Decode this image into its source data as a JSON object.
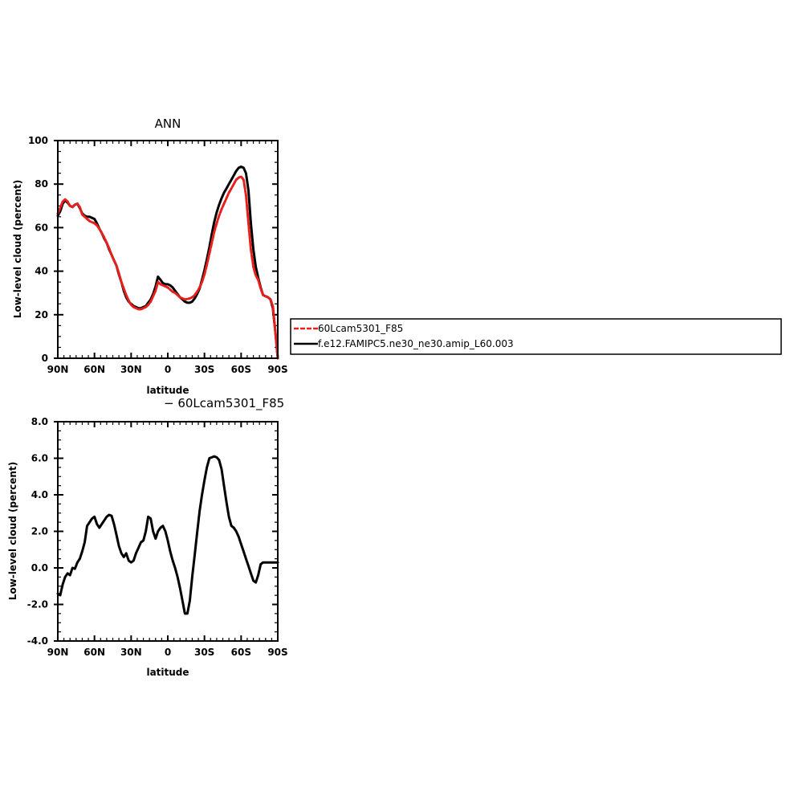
{
  "chart_data": [
    {
      "type": "line",
      "title": "ANN",
      "xlabel": "latitude",
      "ylabel": "Low-level cloud (percent)",
      "xticks": [
        "90N",
        "60N",
        "30N",
        "0",
        "30S",
        "60S",
        "90S"
      ],
      "yticks": [
        "0",
        "20",
        "40",
        "60",
        "80",
        "100"
      ],
      "xlim": [
        90,
        -90
      ],
      "ylim": [
        0,
        100
      ],
      "series": [
        {
          "name": "60Lcam5301_F85",
          "color": "#e8201c",
          "style": "dashed",
          "x": [
            90,
            88,
            86,
            84,
            82,
            80,
            78,
            76,
            74,
            72,
            70,
            68,
            66,
            64,
            62,
            60,
            58,
            56,
            54,
            52,
            50,
            48,
            46,
            44,
            42,
            40,
            38,
            36,
            34,
            32,
            30,
            28,
            26,
            24,
            22,
            20,
            18,
            16,
            14,
            12,
            10,
            8,
            6,
            4,
            2,
            0,
            -2,
            -4,
            -6,
            -8,
            -10,
            -12,
            -14,
            -16,
            -18,
            -20,
            -22,
            -24,
            -26,
            -28,
            -30,
            -32,
            -34,
            -36,
            -38,
            -40,
            -42,
            -44,
            -46,
            -48,
            -50,
            -52,
            -54,
            -56,
            -58,
            -60,
            -62,
            -64,
            -66,
            -68,
            -70,
            -72,
            -74,
            -76,
            -78,
            -80,
            -82,
            -84,
            -86,
            -88,
            -90
          ],
          "y": [
            66.5,
            69,
            72,
            73,
            72,
            70,
            69.5,
            70.5,
            71,
            69.5,
            66,
            65,
            64,
            63,
            62.5,
            62,
            61,
            59.5,
            57.5,
            55.5,
            53,
            50.5,
            47.5,
            45,
            42.5,
            39,
            35,
            32,
            29,
            26.5,
            24.5,
            23.5,
            23,
            22.5,
            22.5,
            23,
            23.5,
            24.5,
            26,
            28.5,
            31,
            35,
            34,
            33.5,
            33,
            32.5,
            31.5,
            30.5,
            30,
            29,
            28,
            27.5,
            27,
            27.2,
            27.5,
            28,
            29,
            30.5,
            32.5,
            35,
            38.5,
            43,
            48,
            53,
            58,
            62,
            65.5,
            68.5,
            71,
            73.5,
            76,
            78,
            80,
            82,
            83,
            83.5,
            82,
            75,
            62,
            50,
            42,
            38,
            36,
            32,
            29,
            28.5,
            28,
            27,
            24,
            12,
            0
          ]
        },
        {
          "name": "f.e12.FAMIPC5.ne30_ne30.amip_L60.003",
          "color": "#000000",
          "style": "solid",
          "x": [
            90,
            88,
            86,
            84,
            82,
            80,
            78,
            76,
            74,
            72,
            70,
            68,
            66,
            64,
            62,
            60,
            58,
            56,
            54,
            52,
            50,
            48,
            46,
            44,
            42,
            40,
            38,
            36,
            34,
            32,
            30,
            28,
            26,
            24,
            22,
            20,
            18,
            16,
            14,
            12,
            10,
            8,
            6,
            4,
            2,
            0,
            -2,
            -4,
            -6,
            -8,
            -10,
            -12,
            -14,
            -16,
            -18,
            -20,
            -22,
            -24,
            -26,
            -28,
            -30,
            -32,
            -34,
            -36,
            -38,
            -40,
            -42,
            -44,
            -46,
            -48,
            -50,
            -52,
            -54,
            -56,
            -58,
            -60,
            -62,
            -64,
            -66,
            -68,
            -70,
            -72,
            -74,
            -76,
            -78,
            -80,
            -82,
            -84,
            -86,
            -88,
            -90
          ],
          "y": [
            65.5,
            67.5,
            71,
            72.5,
            71.5,
            70,
            69.5,
            70.5,
            71,
            69,
            66.5,
            65.5,
            65,
            65,
            64.5,
            64,
            62,
            59.5,
            57.5,
            55,
            53,
            50,
            47.5,
            45,
            42.5,
            38.5,
            35,
            31,
            28,
            26,
            25,
            24,
            23.5,
            23,
            23,
            23.5,
            24,
            25.5,
            27,
            29.5,
            33,
            37.5,
            36,
            34.5,
            34,
            34,
            33.5,
            32.5,
            31,
            29.5,
            28,
            27,
            26,
            25.5,
            25.5,
            26,
            27.5,
            29.5,
            32,
            36,
            40.5,
            45.5,
            51,
            57,
            62.5,
            67,
            70.5,
            73.5,
            76,
            78,
            80,
            82,
            84,
            86,
            87.5,
            88,
            87.5,
            85,
            77,
            62,
            50,
            42,
            37,
            32.5,
            29,
            28.5,
            28,
            27,
            23,
            12,
            0
          ]
        }
      ],
      "legend": "right"
    },
    {
      "type": "line",
      "title": "− 60Lcam5301_F85",
      "xlabel": "latitude",
      "ylabel": "Low-level cloud (percent)",
      "xticks": [
        "90N",
        "60N",
        "30N",
        "0",
        "30S",
        "60S",
        "90S"
      ],
      "yticks": [
        "-4.0",
        "-2.0",
        "0.0",
        "2.0",
        "4.0",
        "6.0",
        "8.0"
      ],
      "xlim": [
        90,
        -90
      ],
      "ylim": [
        -4,
        8
      ],
      "series": [
        {
          "color": "#000000",
          "style": "solid",
          "x": [
            90,
            88,
            86,
            84,
            82,
            80,
            78,
            76,
            74,
            72,
            70,
            68,
            66,
            64,
            62,
            60,
            58,
            56,
            54,
            52,
            50,
            48,
            46,
            44,
            42,
            40,
            38,
            36,
            34,
            32,
            30,
            28,
            26,
            24,
            22,
            20,
            18,
            16,
            14,
            12,
            10,
            8,
            6,
            4,
            2,
            0,
            -2,
            -4,
            -6,
            -8,
            -10,
            -12,
            -14,
            -16,
            -18,
            -20,
            -22,
            -24,
            -26,
            -28,
            -30,
            -32,
            -34,
            -36,
            -38,
            -40,
            -42,
            -44,
            -46,
            -48,
            -50,
            -52,
            -54,
            -56,
            -58,
            -60,
            -62,
            -64,
            -66,
            -68,
            -70,
            -72,
            -74,
            -76,
            -78,
            -80,
            -82,
            -84,
            -86,
            -88,
            -90
          ],
          "y": [
            -1.4,
            -1.5,
            -0.9,
            -0.5,
            -0.3,
            -0.4,
            0,
            -0.05,
            0.3,
            0.5,
            0.9,
            1.4,
            2.3,
            2.5,
            2.7,
            2.8,
            2.4,
            2.2,
            2.4,
            2.6,
            2.8,
            2.9,
            2.85,
            2.4,
            1.8,
            1.2,
            0.8,
            0.6,
            0.8,
            0.4,
            0.3,
            0.4,
            0.8,
            1.1,
            1.4,
            1.5,
            2.0,
            2.8,
            2.7,
            2.0,
            1.6,
            2.0,
            2.2,
            2.3,
            2.0,
            1.5,
            0.9,
            0.4,
            0,
            -0.5,
            -1.1,
            -1.8,
            -2.5,
            -2.5,
            -1.8,
            -0.5,
            0.7,
            1.9,
            3.1,
            4.0,
            4.8,
            5.5,
            6.0,
            6.05,
            6.1,
            6.05,
            5.9,
            5.4,
            4.5,
            3.6,
            2.8,
            2.3,
            2.2,
            2.0,
            1.7,
            1.3,
            0.9,
            0.5,
            0.1,
            -0.3,
            -0.7,
            -0.8,
            -0.4,
            0.2,
            0.3,
            0.3,
            0.3,
            0.3,
            0.3,
            0.3,
            0.3
          ]
        }
      ]
    }
  ]
}
